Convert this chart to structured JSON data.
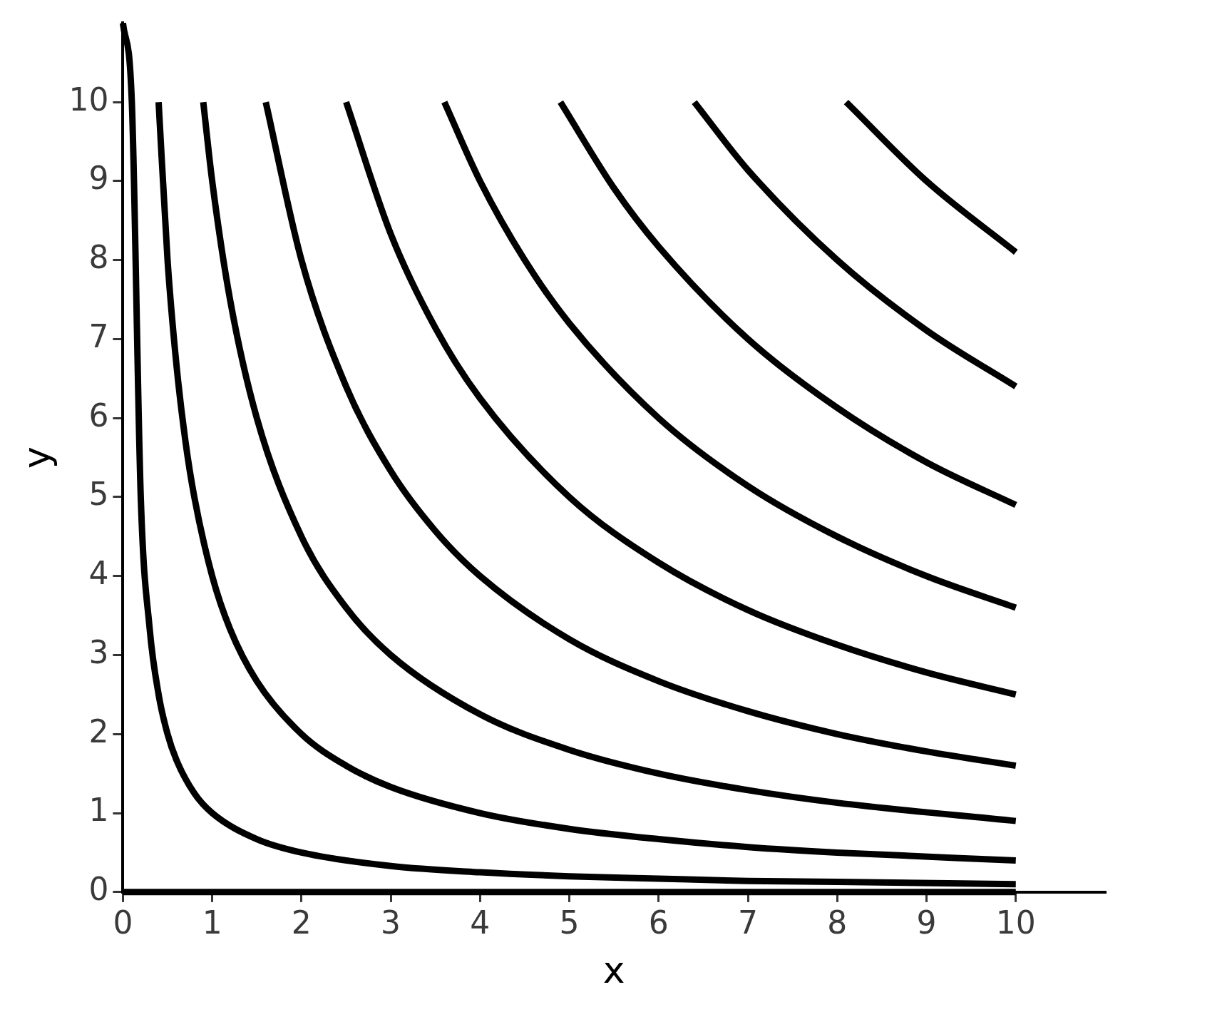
{
  "chart_data": {
    "type": "line",
    "xlabel": "x",
    "ylabel": "y",
    "xlim": [
      0,
      11
    ],
    "ylim": [
      0,
      11
    ],
    "xticks": [
      0,
      1,
      2,
      3,
      4,
      5,
      6,
      7,
      8,
      9,
      10
    ],
    "yticks": [
      0,
      1,
      2,
      3,
      4,
      5,
      6,
      7,
      8,
      9,
      10
    ],
    "grid": false,
    "legend": false,
    "marker": "none",
    "line_style": "solid",
    "series": [
      {
        "color": "#000000",
        "x": [
          0,
          10
        ],
        "values": [
          0,
          0
        ]
      },
      {
        "color": "#000000",
        "x": [
          0,
          0.1,
          0.2,
          0.3,
          0.4,
          0.5,
          0.6,
          0.8,
          1,
          1.5,
          2,
          3,
          4,
          5,
          6,
          7,
          8,
          10
        ],
        "values": [
          11,
          10,
          5,
          3.33,
          2.5,
          2,
          1.67,
          1.25,
          1,
          0.67,
          0.5,
          0.33,
          0.25,
          0.2,
          0.17,
          0.14,
          0.13,
          0.1
        ]
      },
      {
        "color": "#000000",
        "x": [
          0.4,
          0.5,
          0.6,
          0.7,
          0.8,
          1,
          1.2,
          1.5,
          2,
          2.5,
          3,
          4,
          5,
          6,
          7,
          8,
          10
        ],
        "values": [
          10,
          8,
          6.67,
          5.71,
          5,
          4,
          3.33,
          2.67,
          2,
          1.6,
          1.33,
          1,
          0.8,
          0.67,
          0.57,
          0.5,
          0.4
        ]
      },
      {
        "color": "#000000",
        "x": [
          0.9,
          1,
          1.2,
          1.5,
          2,
          2.5,
          3,
          4,
          5,
          6,
          7,
          8,
          10
        ],
        "values": [
          10,
          9,
          7.5,
          6,
          4.5,
          3.6,
          3,
          2.25,
          1.8,
          1.5,
          1.29,
          1.13,
          0.9
        ]
      },
      {
        "color": "#000000",
        "x": [
          1.6,
          2,
          2.5,
          3,
          3.5,
          4,
          5,
          6,
          7,
          8,
          9,
          10
        ],
        "values": [
          10,
          8,
          6.4,
          5.33,
          4.57,
          4,
          3.2,
          2.67,
          2.29,
          2,
          1.78,
          1.6
        ]
      },
      {
        "color": "#000000",
        "x": [
          2.5,
          3,
          3.5,
          4,
          5,
          6,
          7,
          8,
          9,
          10
        ],
        "values": [
          10,
          8.33,
          7.14,
          6.25,
          5,
          4.17,
          3.57,
          3.13,
          2.78,
          2.5
        ]
      },
      {
        "color": "#000000",
        "x": [
          3.6,
          4,
          4.5,
          5,
          6,
          7,
          8,
          9,
          10
        ],
        "values": [
          10,
          9,
          8,
          7.2,
          6,
          5.14,
          4.5,
          4,
          3.6
        ]
      },
      {
        "color": "#000000",
        "x": [
          4.9,
          5.5,
          6,
          7,
          8,
          9,
          10
        ],
        "values": [
          10,
          8.91,
          8.17,
          7,
          6.13,
          5.44,
          4.9
        ]
      },
      {
        "color": "#000000",
        "x": [
          6.4,
          7,
          8,
          9,
          10
        ],
        "values": [
          10,
          9.14,
          8,
          7.11,
          6.4
        ]
      },
      {
        "color": "#000000",
        "x": [
          8.1,
          9,
          10
        ],
        "values": [
          10,
          9,
          8.1
        ]
      }
    ]
  }
}
